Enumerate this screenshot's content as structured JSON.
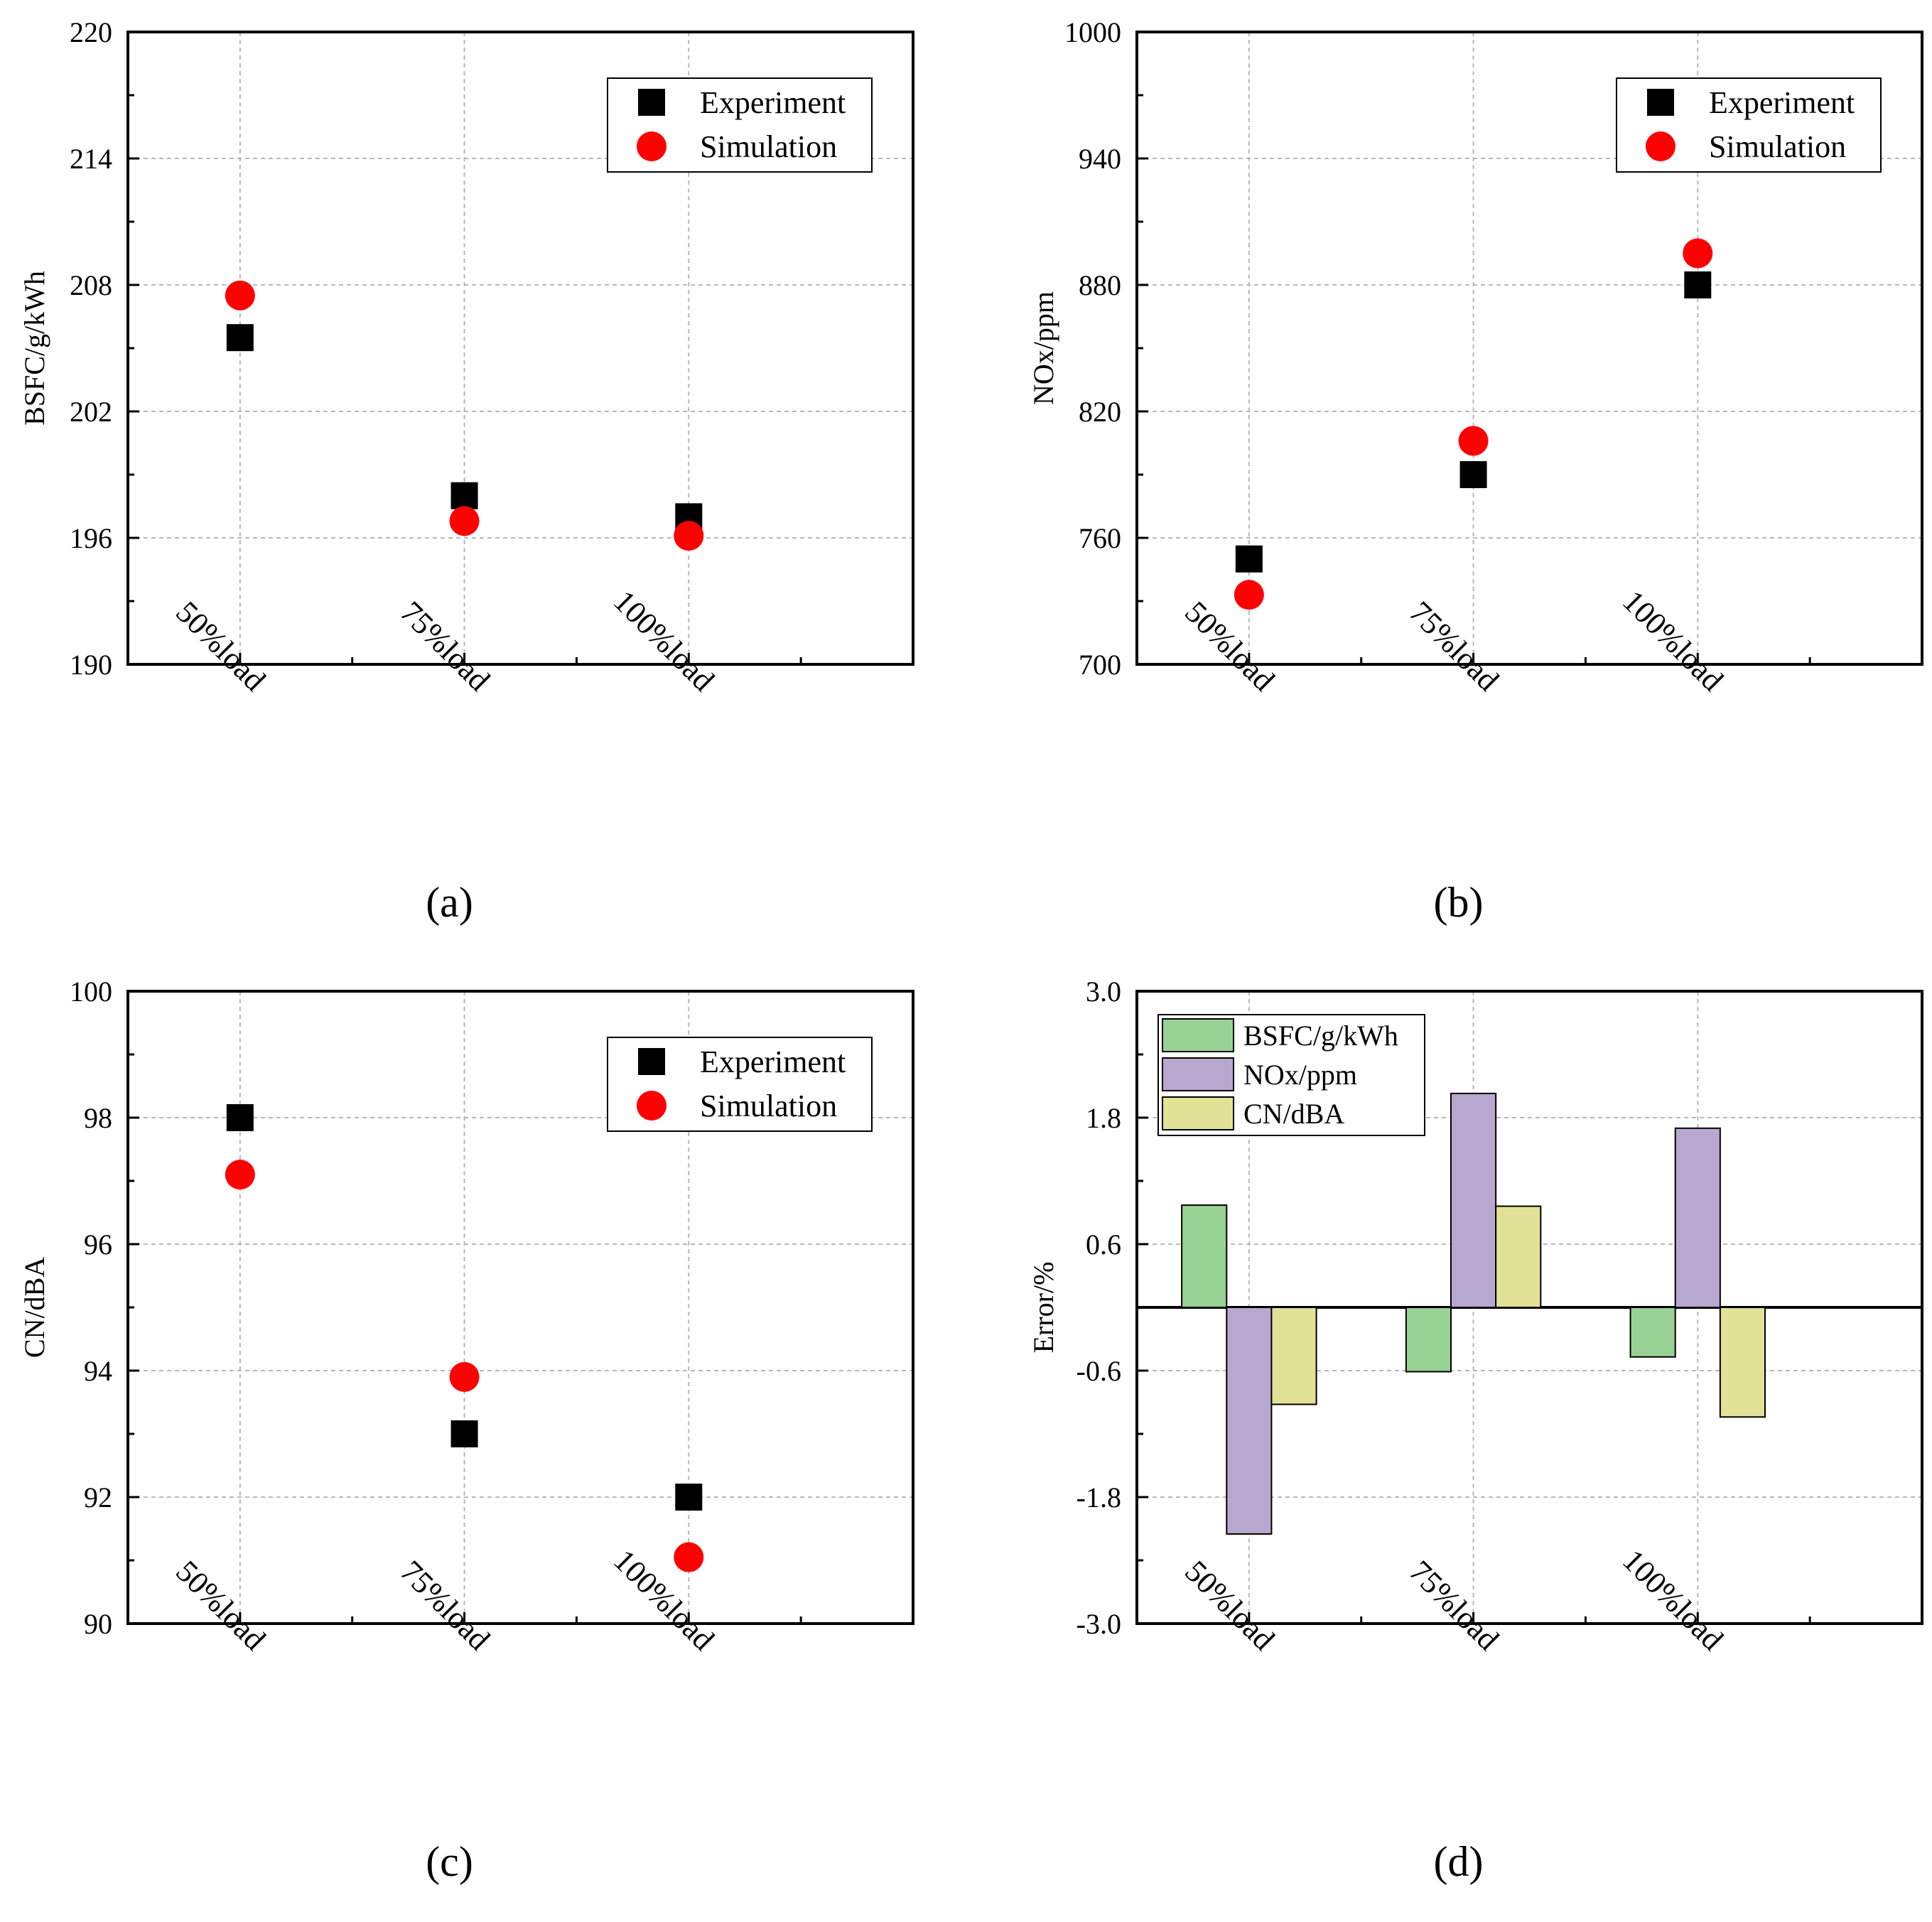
{
  "chart_data": [
    {
      "id": "a",
      "type": "scatter",
      "panel_label": "(a)",
      "ylabel": "BSFC/g/kWh",
      "categories": [
        "50%load",
        "75%load",
        "100%load"
      ],
      "ylim": [
        190,
        220
      ],
      "yticks": [
        "190",
        "196",
        "202",
        "208",
        "214",
        "220"
      ],
      "legend": {
        "placement": "top-right"
      },
      "series": [
        {
          "name": "Experiment",
          "marker": "square",
          "color": "#000000",
          "values": [
            205.5,
            198.0,
            197.0
          ]
        },
        {
          "name": "Simulation",
          "marker": "circle",
          "color": "#ff0000",
          "values": [
            207.5,
            196.8,
            196.1
          ]
        }
      ]
    },
    {
      "id": "b",
      "type": "scatter",
      "panel_label": "(b)",
      "ylabel": "NOx/ppm",
      "categories": [
        "50%load",
        "75%load",
        "100%load"
      ],
      "ylim": [
        700,
        1000
      ],
      "yticks": [
        "700",
        "760",
        "820",
        "880",
        "940",
        "1000"
      ],
      "legend": {
        "placement": "top-right"
      },
      "series": [
        {
          "name": "Experiment",
          "marker": "square",
          "color": "#000000",
          "values": [
            750,
            790,
            880
          ]
        },
        {
          "name": "Simulation",
          "marker": "circle",
          "color": "#ff0000",
          "values": [
            733,
            806,
            895
          ]
        }
      ]
    },
    {
      "id": "c",
      "type": "scatter",
      "panel_label": "(c)",
      "ylabel": "CN/dBA",
      "categories": [
        "50%load",
        "75%load",
        "100%load"
      ],
      "ylim": [
        90,
        100
      ],
      "yticks": [
        "90",
        "92",
        "94",
        "96",
        "98",
        "100"
      ],
      "legend": {
        "placement": "top-right"
      },
      "series": [
        {
          "name": "Experiment",
          "marker": "square",
          "color": "#000000",
          "values": [
            98.0,
            93.0,
            92.0
          ]
        },
        {
          "name": "Simulation",
          "marker": "circle",
          "color": "#ff0000",
          "values": [
            97.1,
            93.9,
            91.05
          ]
        }
      ]
    },
    {
      "id": "d",
      "type": "bar",
      "panel_label": "(d)",
      "ylabel": "Error/%",
      "categories": [
        "50%load",
        "75%load",
        "100%load"
      ],
      "ylim": [
        -3.0,
        3.0
      ],
      "yticks": [
        "-3.0",
        "-1.8",
        "-0.6",
        "0.6",
        "1.8",
        "3.0"
      ],
      "legend": {
        "placement": "top-left"
      },
      "series": [
        {
          "name": "BSFC/g/kWh",
          "color": "#98d294",
          "values": [
            0.97,
            -0.61,
            -0.47
          ]
        },
        {
          "name": "NOx/ppm",
          "color": "#b8a8d0",
          "values": [
            -2.15,
            2.03,
            1.7
          ]
        },
        {
          "name": "CN/dBA",
          "color": "#e2e296",
          "values": [
            -0.92,
            0.96,
            -1.04
          ]
        }
      ]
    }
  ]
}
